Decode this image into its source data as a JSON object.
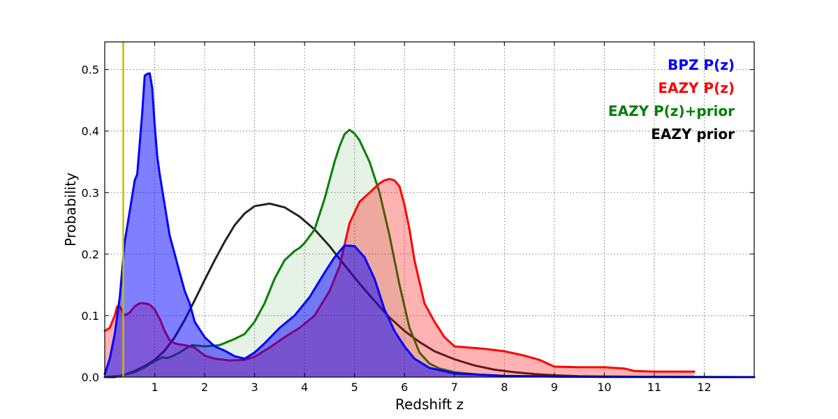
{
  "chart_data": {
    "type": "area",
    "xlabel": "Redshift z",
    "ylabel": "Probability",
    "xlim": [
      0,
      13
    ],
    "ylim": [
      0,
      0.545
    ],
    "x_ticks": [
      1,
      2,
      3,
      4,
      5,
      6,
      7,
      8,
      9,
      10,
      11,
      12
    ],
    "y_ticks": [
      0.0,
      0.1,
      0.2,
      0.3,
      0.4,
      0.5
    ],
    "y_tick_labels": [
      "0.0",
      "0.1",
      "0.2",
      "0.3",
      "0.4",
      "0.5"
    ],
    "grid": true,
    "legend_position": "top-right",
    "vertical_line": {
      "x": 0.37,
      "color": "#bfbf00"
    },
    "series": [
      {
        "name": "EAZY prior",
        "line_color": "#222222",
        "fill": false,
        "x": [
          0.0,
          0.2,
          0.4,
          0.6,
          0.8,
          1.0,
          1.2,
          1.4,
          1.6,
          1.8,
          2.0,
          2.2,
          2.4,
          2.6,
          2.8,
          3.0,
          3.3,
          3.6,
          3.9,
          4.2,
          4.5,
          4.8,
          5.1,
          5.4,
          5.7,
          6.0,
          6.3,
          6.6,
          7.0,
          7.4,
          7.8,
          8.2,
          8.6,
          9.0,
          9.5,
          10.0,
          11.0,
          12.0,
          13.0
        ],
        "y": [
          0.0,
          0.0,
          0.004,
          0.01,
          0.018,
          0.028,
          0.043,
          0.065,
          0.093,
          0.125,
          0.158,
          0.19,
          0.22,
          0.247,
          0.266,
          0.278,
          0.282,
          0.276,
          0.261,
          0.24,
          0.213,
          0.182,
          0.152,
          0.124,
          0.097,
          0.075,
          0.057,
          0.042,
          0.029,
          0.019,
          0.012,
          0.008,
          0.005,
          0.003,
          0.0015,
          0.001,
          0.0003,
          0.0,
          0.0
        ]
      },
      {
        "name": "EAZY P(z)+prior",
        "line_color": "#008000",
        "fill_color": "rgba(0,128,0,0.10)",
        "fill": true,
        "x": [
          0.0,
          0.3,
          0.6,
          0.8,
          1.0,
          1.15,
          1.25,
          1.35,
          1.5,
          1.65,
          1.75,
          2.0,
          2.3,
          2.6,
          2.8,
          3.0,
          3.2,
          3.4,
          3.6,
          3.8,
          3.9,
          4.0,
          4.2,
          4.4,
          4.6,
          4.7,
          4.8,
          4.9,
          5.0,
          5.1,
          5.3,
          5.5,
          5.7,
          5.9,
          6.1,
          6.3,
          6.5,
          6.7,
          7.0,
          7.5,
          8.0,
          9.0,
          10.0,
          13.0
        ],
        "y": [
          0.0,
          0.002,
          0.008,
          0.016,
          0.026,
          0.032,
          0.031,
          0.034,
          0.04,
          0.048,
          0.052,
          0.05,
          0.052,
          0.062,
          0.07,
          0.09,
          0.12,
          0.16,
          0.19,
          0.205,
          0.21,
          0.218,
          0.24,
          0.29,
          0.35,
          0.375,
          0.395,
          0.402,
          0.396,
          0.385,
          0.35,
          0.3,
          0.23,
          0.15,
          0.08,
          0.04,
          0.022,
          0.014,
          0.008,
          0.004,
          0.002,
          0.0008,
          0.0003,
          0.0
        ]
      },
      {
        "name": "EAZY P(z)",
        "line_color": "#ff0000",
        "fill_color": "rgba(255,0,0,0.30)",
        "fill": true,
        "x": [
          0.0,
          0.1,
          0.2,
          0.25,
          0.3,
          0.4,
          0.5,
          0.6,
          0.7,
          0.8,
          0.9,
          1.0,
          1.1,
          1.2,
          1.3,
          1.4,
          1.5,
          1.6,
          1.8,
          2.0,
          2.2,
          2.5,
          2.8,
          3.0,
          3.3,
          3.6,
          3.9,
          4.2,
          4.5,
          4.7,
          4.9,
          5.1,
          5.3,
          5.5,
          5.6,
          5.7,
          5.8,
          5.9,
          6.0,
          6.1,
          6.2,
          6.4,
          6.6,
          6.8,
          7.0,
          7.3,
          7.6,
          8.0,
          8.4,
          8.7,
          9.0,
          9.5,
          10.0,
          10.4,
          10.6,
          11.0,
          11.5,
          11.8
        ],
        "y": [
          0.075,
          0.08,
          0.1,
          0.115,
          0.115,
          0.1,
          0.105,
          0.115,
          0.12,
          0.12,
          0.118,
          0.11,
          0.095,
          0.075,
          0.06,
          0.055,
          0.053,
          0.052,
          0.048,
          0.035,
          0.03,
          0.027,
          0.028,
          0.033,
          0.048,
          0.065,
          0.08,
          0.1,
          0.14,
          0.18,
          0.25,
          0.285,
          0.3,
          0.315,
          0.32,
          0.322,
          0.32,
          0.31,
          0.28,
          0.24,
          0.19,
          0.12,
          0.09,
          0.065,
          0.05,
          0.048,
          0.046,
          0.042,
          0.035,
          0.028,
          0.017,
          0.016,
          0.016,
          0.014,
          0.01,
          0.009,
          0.009,
          0.009
        ]
      },
      {
        "name": "BPZ P(z)",
        "line_color": "#0000ff",
        "fill_color": "rgba(0,0,255,0.50)",
        "fill": true,
        "x": [
          0.0,
          0.1,
          0.2,
          0.3,
          0.4,
          0.5,
          0.6,
          0.65,
          0.7,
          0.75,
          0.8,
          0.85,
          0.9,
          0.95,
          1.0,
          1.05,
          1.1,
          1.2,
          1.3,
          1.4,
          1.5,
          1.6,
          1.7,
          1.8,
          2.0,
          2.2,
          2.4,
          2.6,
          2.8,
          3.0,
          3.2,
          3.5,
          3.8,
          4.1,
          4.4,
          4.6,
          4.8,
          5.0,
          5.2,
          5.4,
          5.6,
          5.8,
          6.0,
          6.2,
          6.5,
          7.0,
          8.0,
          9.0,
          10.0,
          13.0
        ],
        "y": [
          0.005,
          0.03,
          0.07,
          0.13,
          0.22,
          0.27,
          0.32,
          0.33,
          0.38,
          0.43,
          0.49,
          0.493,
          0.494,
          0.47,
          0.41,
          0.36,
          0.33,
          0.28,
          0.23,
          0.2,
          0.17,
          0.14,
          0.12,
          0.09,
          0.065,
          0.05,
          0.043,
          0.034,
          0.03,
          0.04,
          0.055,
          0.08,
          0.1,
          0.13,
          0.17,
          0.195,
          0.214,
          0.213,
          0.195,
          0.16,
          0.11,
          0.075,
          0.05,
          0.03,
          0.015,
          0.006,
          0.002,
          0.001,
          0.0005,
          0.0
        ]
      }
    ],
    "legend": [
      {
        "label": "BPZ P(z)",
        "color": "#0000ff"
      },
      {
        "label": "EAZY P(z)",
        "color": "#ff0000"
      },
      {
        "label": "EAZY P(z)+prior",
        "color": "#008000"
      },
      {
        "label": "EAZY prior",
        "color": "#000000"
      }
    ]
  }
}
